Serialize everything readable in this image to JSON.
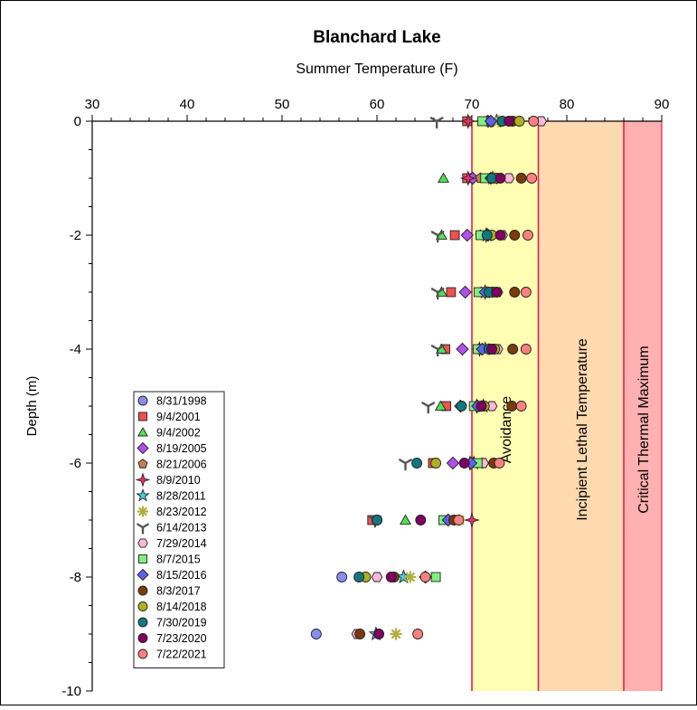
{
  "chart_data": {
    "type": "scatter",
    "title": "Blanchard Lake",
    "subtitle": "Summer Temperature (F)",
    "xlabel": "",
    "ylabel": "Depth (m)",
    "xlim": [
      30,
      90
    ],
    "ylim": [
      -10,
      0
    ],
    "x_axis_position": "top",
    "x_ticks": [
      30,
      40,
      50,
      60,
      70,
      80,
      90
    ],
    "y_ticks": [
      0,
      -2,
      -4,
      -6,
      -8,
      -10
    ],
    "grid": false,
    "legend_position": "bottom-left",
    "zones": [
      {
        "label": "Avoidance",
        "from": 70,
        "to": 77,
        "color": "#ffffb3"
      },
      {
        "label": "Incipient Lethal Temperature",
        "from": 77,
        "to": 86,
        "color": "#ffd9b0"
      },
      {
        "label": "Critical Thermal Maximum",
        "from": 86,
        "to": 90,
        "color": "#ffb0b0"
      }
    ],
    "zone_line_color": "#e8204a",
    "series": [
      {
        "name": "8/31/1998",
        "marker": "circle",
        "color": "#8a8cf0",
        "points": [
          [
            56.3,
            -8
          ],
          [
            53.6,
            -9
          ]
        ]
      },
      {
        "name": "9/4/2001",
        "marker": "square",
        "color": "#f05050",
        "points": [
          [
            69.5,
            0
          ],
          [
            69.5,
            -1
          ],
          [
            68.2,
            -2
          ],
          [
            67.8,
            -3
          ],
          [
            67.2,
            -4
          ],
          [
            67.3,
            -5
          ],
          [
            65.9,
            -6
          ],
          [
            59.5,
            -7
          ]
        ]
      },
      {
        "name": "9/4/2002",
        "marker": "triangle",
        "color": "#50e050",
        "points": [
          [
            71.5,
            0
          ],
          [
            67.0,
            -1
          ],
          [
            66.8,
            -2
          ],
          [
            66.8,
            -3
          ],
          [
            66.8,
            -4
          ],
          [
            66.7,
            -5
          ],
          [
            63.0,
            -7
          ]
        ]
      },
      {
        "name": "8/19/2005",
        "marker": "diamond",
        "color": "#b050f0",
        "points": [
          [
            71.7,
            0
          ],
          [
            70.1,
            -1
          ],
          [
            69.5,
            -2
          ],
          [
            69.3,
            -3
          ],
          [
            69.0,
            -4
          ],
          [
            68.8,
            -5
          ],
          [
            68.0,
            -6
          ],
          [
            67.5,
            -7
          ],
          [
            65.1,
            -8
          ]
        ]
      },
      {
        "name": "8/21/2006",
        "marker": "pentagon",
        "color": "#c08050",
        "points": [
          [
            71.6,
            0
          ],
          [
            70.9,
            -1
          ],
          [
            70.9,
            -2
          ],
          [
            71.0,
            -3
          ],
          [
            70.7,
            -4
          ],
          [
            70.6,
            -5
          ]
        ]
      },
      {
        "name": "8/9/2010",
        "marker": "star4",
        "color": "#f03070",
        "points": [
          [
            69.6,
            0
          ],
          [
            69.6,
            -1
          ],
          [
            71.5,
            -2
          ],
          [
            71.4,
            -3
          ],
          [
            70.8,
            -4
          ],
          [
            70.5,
            -5
          ],
          [
            69.8,
            -6
          ],
          [
            70.0,
            -7
          ]
        ]
      },
      {
        "name": "8/28/2011",
        "marker": "star5",
        "color": "#40d0e0",
        "points": [
          [
            72.6,
            0
          ],
          [
            72.2,
            -1
          ],
          [
            71.6,
            -2
          ],
          [
            71.4,
            -3
          ],
          [
            71.4,
            -4
          ],
          [
            71.2,
            -5
          ],
          [
            70.2,
            -6
          ],
          [
            62.8,
            -8
          ],
          [
            59.9,
            -9
          ]
        ]
      },
      {
        "name": "8/23/2012",
        "marker": "asterisk",
        "color": "#b0b040",
        "points": [
          [
            72.8,
            0
          ],
          [
            72.3,
            -1
          ],
          [
            71.7,
            -2
          ],
          [
            71.6,
            -3
          ],
          [
            71.8,
            -4
          ],
          [
            71.0,
            -5
          ],
          [
            71.1,
            -6
          ],
          [
            68.7,
            -7
          ],
          [
            63.5,
            -8
          ],
          [
            62.0,
            -9
          ]
        ]
      },
      {
        "name": "6/14/2013",
        "marker": "tri-y",
        "color": "#555555",
        "points": [
          [
            66.3,
            0
          ],
          [
            66.4,
            -2
          ],
          [
            66.4,
            -3
          ],
          [
            66.4,
            -4
          ],
          [
            65.4,
            -5
          ],
          [
            63.0,
            -6
          ],
          [
            59.8,
            -7
          ]
        ]
      },
      {
        "name": "7/29/2014",
        "marker": "hexagon",
        "color": "#ffb8d8",
        "points": [
          [
            77.3,
            0
          ],
          [
            73.9,
            -1
          ],
          [
            73.2,
            -2
          ],
          [
            72.7,
            -3
          ],
          [
            72.7,
            -4
          ],
          [
            72.1,
            -5
          ],
          [
            71.2,
            -6
          ],
          [
            68.3,
            -7
          ],
          [
            60.0,
            -8
          ],
          [
            57.9,
            -9
          ]
        ]
      },
      {
        "name": "8/7/2015",
        "marker": "square",
        "color": "#80f080",
        "points": [
          [
            71.1,
            0
          ],
          [
            71.4,
            -1
          ],
          [
            70.9,
            -2
          ],
          [
            70.7,
            -3
          ],
          [
            70.6,
            -4
          ],
          [
            70.2,
            -5
          ],
          [
            70.6,
            -6
          ],
          [
            67.0,
            -7
          ],
          [
            66.2,
            -8
          ]
        ]
      },
      {
        "name": "8/15/2016",
        "marker": "diamond",
        "color": "#6060f0",
        "points": [
          [
            72.0,
            0
          ],
          [
            72.0,
            -1
          ],
          [
            71.7,
            -2
          ],
          [
            71.4,
            -3
          ],
          [
            71.1,
            -4
          ],
          [
            70.6,
            -5
          ],
          [
            69.9,
            -6
          ],
          [
            67.5,
            -7
          ],
          [
            65.1,
            -8
          ]
        ]
      },
      {
        "name": "8/3/2017",
        "marker": "circle",
        "color": "#7a3b0e",
        "points": [
          [
            74.3,
            0
          ],
          [
            75.2,
            -1
          ],
          [
            74.5,
            -2
          ],
          [
            74.5,
            -3
          ],
          [
            74.3,
            -4
          ],
          [
            74.2,
            -5
          ],
          [
            72.3,
            -6
          ],
          [
            68.1,
            -7
          ],
          [
            61.8,
            -8
          ],
          [
            58.2,
            -9
          ]
        ]
      },
      {
        "name": "8/14/2018",
        "marker": "circle",
        "color": "#b0b020",
        "points": [
          [
            75.0,
            0
          ],
          [
            72.6,
            -1
          ],
          [
            72.1,
            -2
          ],
          [
            72.2,
            -3
          ],
          [
            72.4,
            -4
          ],
          [
            71.3,
            -5
          ],
          [
            66.2,
            -6
          ],
          [
            60.0,
            -7
          ],
          [
            58.8,
            -8
          ]
        ]
      },
      {
        "name": "7/30/2019",
        "marker": "circle",
        "color": "#107880",
        "points": [
          [
            73.2,
            0
          ],
          [
            72.1,
            -1
          ],
          [
            71.6,
            -2
          ],
          [
            71.8,
            -3
          ],
          [
            71.8,
            -4
          ],
          [
            68.9,
            -5
          ],
          [
            64.2,
            -6
          ],
          [
            60.0,
            -7
          ],
          [
            58.1,
            -8
          ]
        ]
      },
      {
        "name": "7/23/2020",
        "marker": "circle",
        "color": "#800060",
        "points": [
          [
            73.9,
            0
          ],
          [
            73.0,
            -1
          ],
          [
            73.0,
            -2
          ],
          [
            72.6,
            -3
          ],
          [
            72.1,
            -4
          ],
          [
            71.0,
            -5
          ],
          [
            69.2,
            -6
          ],
          [
            64.6,
            -7
          ],
          [
            61.5,
            -8
          ],
          [
            60.2,
            -9
          ]
        ]
      },
      {
        "name": "7/22/2021",
        "marker": "circle",
        "color": "#ff8080",
        "points": [
          [
            76.5,
            0
          ],
          [
            76.3,
            -1
          ],
          [
            75.9,
            -2
          ],
          [
            75.7,
            -3
          ],
          [
            75.7,
            -4
          ],
          [
            75.2,
            -5
          ],
          [
            72.9,
            -6
          ],
          [
            68.6,
            -7
          ],
          [
            65.1,
            -8
          ],
          [
            64.3,
            -9
          ]
        ]
      }
    ]
  }
}
